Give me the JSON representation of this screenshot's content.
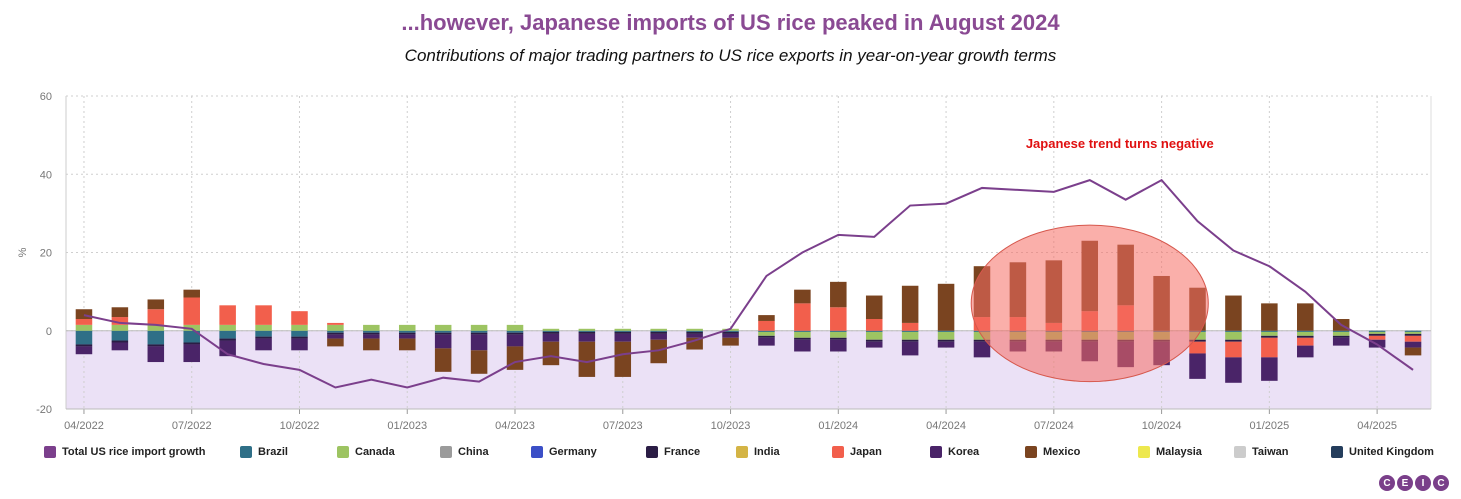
{
  "title": "...however, Japanese imports of US rice peaked in August 2024",
  "subtitle": "Contributions of major trading partners to US rice exports in year-on-year growth terms",
  "logo_letters": [
    "C",
    "E",
    "I",
    "C"
  ],
  "chart_data": {
    "type": "bar",
    "stacked": true,
    "ylabel": "%",
    "ylim": [
      -20,
      60
    ],
    "yticks": [
      -20,
      0,
      20,
      40,
      60
    ],
    "grid": true,
    "legend_position": "bottom",
    "x_tick_labels": [
      "04/2022",
      "07/2022",
      "10/2022",
      "01/2023",
      "04/2023",
      "07/2023",
      "10/2023",
      "01/2024",
      "04/2024",
      "07/2024",
      "10/2024",
      "01/2025",
      "04/2025"
    ],
    "categories": [
      "04/2022",
      "05/2022",
      "06/2022",
      "07/2022",
      "08/2022",
      "09/2022",
      "10/2022",
      "11/2022",
      "12/2022",
      "01/2023",
      "02/2023",
      "03/2023",
      "04/2023",
      "05/2023",
      "06/2023",
      "07/2023",
      "08/2023",
      "09/2023",
      "10/2023",
      "11/2023",
      "12/2023",
      "01/2024",
      "02/2024",
      "03/2024",
      "04/2024",
      "05/2024",
      "06/2024",
      "07/2024",
      "08/2024",
      "09/2024",
      "10/2024",
      "11/2024",
      "12/2024",
      "01/2025",
      "02/2025",
      "03/2025",
      "04/2025",
      "05/2025"
    ],
    "line": {
      "name": "Total US rice import growth",
      "color": "#7b3f8c",
      "values": [
        4,
        2,
        1.5,
        0.5,
        -6,
        -8.5,
        -10,
        -14.5,
        -12.5,
        -14.5,
        -12,
        -13,
        -8,
        -6.5,
        -8,
        -6,
        -5,
        -2.5,
        0.5,
        14,
        20,
        24.5,
        24,
        32,
        32.5,
        36.5,
        36,
        35.5,
        38.5,
        33.5,
        38.5,
        28,
        20.5,
        16.5,
        10,
        1.5,
        -3.5,
        -10
      ]
    },
    "series": [
      {
        "name": "Brazil",
        "color": "#2f6f87",
        "values": [
          -3.5,
          -2.5,
          -3.5,
          -3,
          -2,
          -1.5,
          -1.5,
          -0.5,
          -0.5,
          -0.5,
          -0.5,
          -0.5,
          -0.5,
          -0.3,
          -0.3,
          -0.3,
          -0.3,
          -0.3,
          -0.3,
          -0.3,
          -0.3,
          -0.3,
          -0.3,
          -0.3,
          -0.3,
          -0.3,
          -0.3,
          -0.3,
          -0.3,
          -0.3,
          -0.3,
          -0.3,
          -0.3,
          -0.3,
          -0.3,
          -0.3,
          -0.3,
          -0.3
        ]
      },
      {
        "name": "Canada",
        "color": "#9dc462",
        "values": [
          1.5,
          1.5,
          1.5,
          1.5,
          1.5,
          1.5,
          1.5,
          1.5,
          1.5,
          1.5,
          1.5,
          1.5,
          1.5,
          0.5,
          0.5,
          0.5,
          0.5,
          0.5,
          0.5,
          -1,
          -1.5,
          -1.5,
          -2,
          -2,
          -2,
          -2,
          -2,
          -2,
          -2,
          -2,
          -2,
          -2,
          -2,
          -1,
          -1,
          -1,
          -0.5,
          -0.5
        ]
      },
      {
        "name": "China",
        "color": "#9b9b9b",
        "values": [
          0,
          0,
          0,
          0,
          0,
          0,
          0,
          0,
          0,
          0,
          0,
          0,
          0,
          0,
          0,
          0,
          0,
          0,
          0,
          0,
          0,
          0,
          0,
          0,
          0,
          0,
          0,
          0,
          0,
          0,
          0,
          0,
          0,
          0,
          0,
          0,
          0,
          0
        ]
      },
      {
        "name": "Germany",
        "color": "#3b4fc7",
        "values": [
          0,
          0,
          0,
          0,
          0,
          0,
          0,
          0,
          0,
          0,
          0,
          0,
          0,
          0,
          0,
          0,
          0,
          0,
          0,
          0,
          0,
          0,
          0,
          0,
          0,
          0,
          0,
          0,
          0,
          0,
          0,
          0,
          0,
          0,
          0,
          0,
          0,
          0
        ]
      },
      {
        "name": "France",
        "color": "#2b1d45",
        "values": [
          -0.5,
          -0.5,
          -0.5,
          -0.5,
          -0.5,
          -0.5,
          -0.5,
          -0.5,
          -0.5,
          -0.5,
          -0.5,
          -0.5,
          -0.5,
          -0.5,
          -0.5,
          -0.5,
          -0.5,
          -0.5,
          -0.5,
          -0.5,
          -0.5,
          -0.5,
          -0.5,
          -0.5,
          -0.5,
          -0.5,
          -0.5,
          -0.5,
          -0.5,
          -0.5,
          -0.5,
          -0.5,
          -0.5,
          -0.5,
          -0.5,
          -0.5,
          -0.5,
          -0.5
        ]
      },
      {
        "name": "India",
        "color": "#d4b445",
        "values": [
          0,
          0,
          0,
          0,
          0,
          0,
          0,
          0,
          0,
          0,
          0,
          0,
          0,
          0,
          0,
          0,
          0,
          0,
          0,
          0,
          0,
          0,
          0,
          0,
          0,
          0,
          0,
          0,
          0,
          0,
          0,
          0,
          0,
          0,
          0,
          0,
          0,
          0
        ]
      },
      {
        "name": "Japan",
        "color": "#f25f4c",
        "values": [
          1.5,
          2,
          4,
          7,
          5,
          5,
          3.5,
          0.5,
          0,
          0,
          0,
          0,
          0,
          0,
          0,
          0,
          0,
          0,
          0,
          2.5,
          7,
          6,
          3,
          2,
          0,
          3.5,
          3.5,
          2,
          5,
          6.5,
          0,
          -3,
          -4,
          -5,
          -2,
          0,
          -1,
          -1.5
        ]
      },
      {
        "name": "Korea",
        "color": "#4a2468",
        "values": [
          -2,
          -2,
          -4,
          -4.5,
          -4,
          -3,
          -3,
          -1,
          -1,
          -1,
          -3.5,
          -4,
          -3,
          -2,
          -2,
          -2,
          -1.5,
          -1,
          -1,
          -2,
          -3,
          -3,
          -1.5,
          -3.5,
          -1.5,
          -4,
          -2.5,
          -2.5,
          -5,
          -6.5,
          -6,
          -6.5,
          -6.5,
          -6,
          -3,
          -2,
          -2,
          -1.5
        ]
      },
      {
        "name": "Mexico",
        "color": "#7a4420",
        "values": [
          2.5,
          2.5,
          2.5,
          2,
          0,
          0,
          0,
          -2,
          -3,
          -3,
          -6,
          -6,
          -6,
          -6,
          -9,
          -9,
          -6,
          -3,
          -2,
          1.5,
          3.5,
          6.5,
          6,
          9.5,
          12,
          13,
          14,
          16,
          18,
          15.5,
          14,
          11,
          9,
          7,
          7,
          3,
          0,
          -2
        ]
      },
      {
        "name": "Malaysia",
        "color": "#ede84e",
        "values": [
          0,
          0,
          0,
          0,
          0,
          0,
          0,
          0,
          0,
          0,
          0,
          0,
          0,
          0,
          0,
          0,
          0,
          0,
          0,
          0,
          0,
          0,
          0,
          0,
          0,
          0,
          0,
          0,
          0,
          0,
          0,
          0,
          0,
          0,
          0,
          0,
          0,
          0
        ]
      },
      {
        "name": "Taiwan",
        "color": "#cccccc",
        "values": [
          0,
          0,
          0,
          0,
          0,
          0,
          0,
          0,
          0,
          0,
          0,
          0,
          0,
          0,
          0,
          0,
          0,
          0,
          0,
          0,
          0,
          0,
          0,
          0,
          0,
          0,
          0,
          0,
          0,
          0,
          0,
          0,
          0,
          0,
          0,
          0,
          0,
          0
        ]
      },
      {
        "name": "United Kingdom",
        "color": "#243d5c",
        "values": [
          0,
          0,
          0,
          0,
          0,
          0,
          0,
          0,
          0,
          0,
          0,
          0,
          0,
          0,
          0,
          0,
          0,
          0,
          0,
          0,
          0,
          0,
          0,
          0,
          0,
          0,
          0,
          0,
          0,
          0,
          0,
          0,
          0,
          0,
          0,
          0,
          0,
          0
        ]
      }
    ],
    "annotation": {
      "text": "Japanese trend turns negative",
      "color": "#e01010"
    },
    "highlight_category": "08/2024",
    "colors": {
      "shade": "#e8dcf5",
      "grid": "#cfcfcf",
      "axis_text": "#777777"
    }
  }
}
